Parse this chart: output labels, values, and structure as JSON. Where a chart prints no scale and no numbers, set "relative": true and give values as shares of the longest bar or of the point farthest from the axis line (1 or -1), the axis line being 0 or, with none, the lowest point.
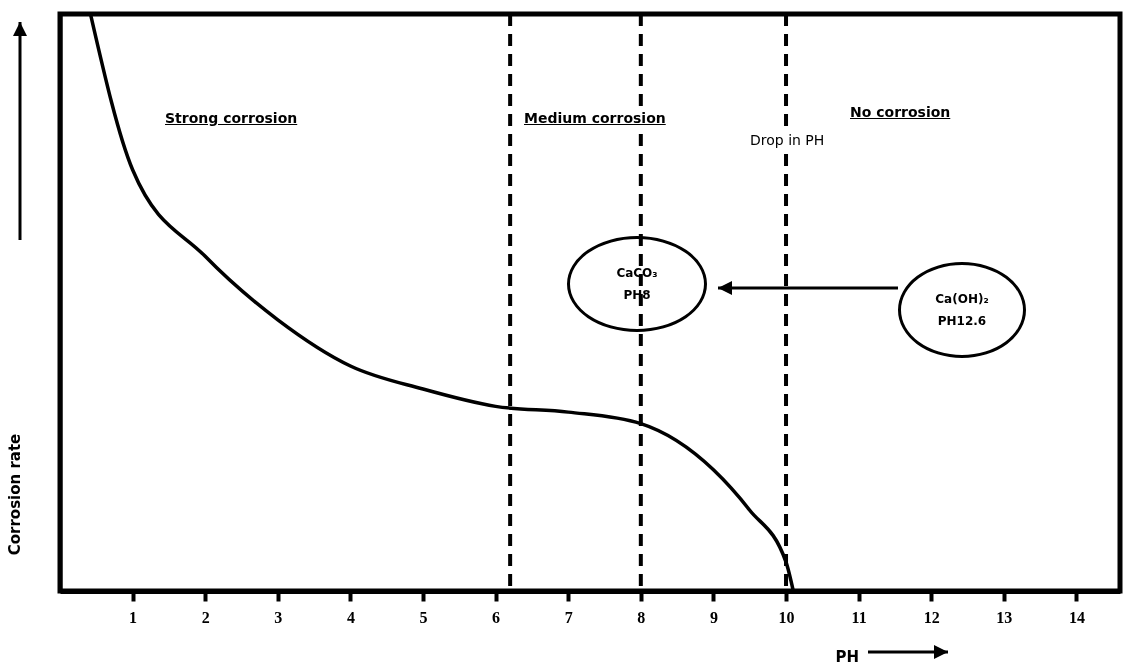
{
  "chart_data": {
    "type": "line",
    "relative": true,
    "xlabel": "PH",
    "ylabel": "Corrosion rate",
    "xlim": [
      0,
      14.6
    ],
    "xticks": [
      1,
      2,
      3,
      4,
      5,
      6,
      7,
      8,
      9,
      10,
      11,
      12,
      13,
      14
    ],
    "series": [
      {
        "color": "#000000",
        "x": [
          0.42,
          1,
          2,
          3,
          4,
          5,
          6,
          7,
          8,
          9,
          9.5,
          10,
          10.1
        ],
        "values": [
          1.0,
          0.73,
          0.58,
          0.47,
          0.39,
          0.35,
          0.32,
          0.31,
          0.29,
          0.21,
          0.14,
          0.05,
          0
        ]
      }
    ],
    "ref_lines": [
      {
        "axis": "x",
        "value": 6.2,
        "line_style": "dashed"
      },
      {
        "axis": "x",
        "value": 8,
        "line_style": "dashed"
      },
      {
        "axis": "x",
        "value": 10,
        "line_style": "dashed"
      }
    ],
    "annotations": [
      "Strong corrosion",
      "Medium corrosion",
      "No corrosion",
      "Drop in PH",
      "CaCO₃\nPH8",
      "Ca(OH)₂\nPH12.6"
    ],
    "line_style": "solid",
    "marker": "none",
    "grid": false
  }
}
